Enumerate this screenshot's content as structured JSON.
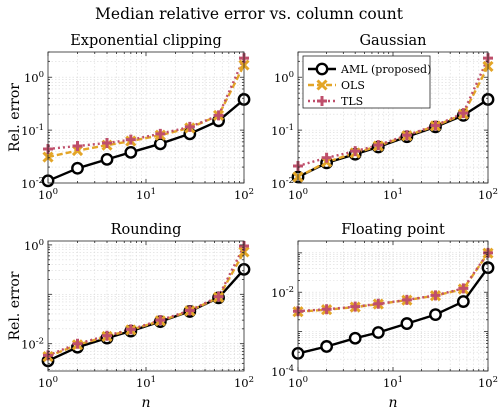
{
  "figure_title": "Median relative error vs. column count",
  "legend": {
    "location": "top-left of Gaussian panel",
    "entries": [
      "AML (proposed)",
      "OLS",
      "TLS"
    ]
  },
  "styles": {
    "AML (proposed)": {
      "color": "#000000",
      "linestyle": "solid",
      "marker": "circle"
    },
    "OLS": {
      "color": "#e3a527",
      "linestyle": "dashed",
      "marker": "x"
    },
    "TLS": {
      "color": "#bf4f6b",
      "linestyle": "dotted",
      "marker": "plus"
    }
  },
  "chart_data": [
    {
      "type": "line",
      "title": "Exponential clipping",
      "xlabel": "",
      "ylabel": "Rel. error",
      "xscale": "log",
      "yscale": "log",
      "xlim": [
        1,
        100
      ],
      "ylim": [
        0.01,
        3
      ],
      "grid": true,
      "xticks": [
        {
          "base": "10",
          "exp": "0"
        },
        {
          "base": "10",
          "exp": "1"
        },
        {
          "base": "10",
          "exp": "2"
        }
      ],
      "yticks": [
        {
          "value": 0.01,
          "base": "10",
          "exp": "-2"
        },
        {
          "value": 0.1,
          "base": "10",
          "exp": "-1"
        },
        {
          "value": 1,
          "base": "10",
          "exp": "0"
        }
      ],
      "x": [
        1,
        2,
        4,
        7,
        14,
        28,
        55,
        100
      ],
      "series": [
        {
          "name": "AML (proposed)",
          "values": [
            0.011,
            0.019,
            0.028,
            0.038,
            0.055,
            0.085,
            0.15,
            0.38
          ]
        },
        {
          "name": "OLS",
          "values": [
            0.031,
            0.041,
            0.052,
            0.062,
            0.08,
            0.11,
            0.19,
            1.7
          ]
        },
        {
          "name": "TLS",
          "values": [
            0.044,
            0.05,
            0.057,
            0.066,
            0.085,
            0.115,
            0.19,
            2.3
          ]
        }
      ]
    },
    {
      "type": "line",
      "title": "Gaussian",
      "xlabel": "",
      "ylabel": "",
      "xscale": "log",
      "yscale": "log",
      "xlim": [
        1,
        100
      ],
      "ylim": [
        0.01,
        3
      ],
      "grid": true,
      "xticks": [
        {
          "base": "10",
          "exp": "0"
        },
        {
          "base": "10",
          "exp": "1"
        },
        {
          "base": "10",
          "exp": "2"
        }
      ],
      "yticks": [
        {
          "value": 0.01,
          "base": "10",
          "exp": "-2"
        },
        {
          "value": 0.1,
          "base": "10",
          "exp": "-1"
        },
        {
          "value": 1,
          "base": "10",
          "exp": "0"
        }
      ],
      "x": [
        1,
        2,
        4,
        7,
        14,
        28,
        55,
        100
      ],
      "series": [
        {
          "name": "AML (proposed)",
          "values": [
            0.013,
            0.024,
            0.035,
            0.048,
            0.075,
            0.115,
            0.19,
            0.38
          ]
        },
        {
          "name": "OLS",
          "values": [
            0.013,
            0.025,
            0.037,
            0.05,
            0.078,
            0.12,
            0.2,
            1.6
          ]
        },
        {
          "name": "TLS",
          "values": [
            0.021,
            0.03,
            0.04,
            0.052,
            0.08,
            0.122,
            0.21,
            2.3
          ]
        }
      ]
    },
    {
      "type": "line",
      "title": "Rounding",
      "xlabel": "n",
      "ylabel": "Rel. error",
      "xscale": "log",
      "yscale": "log",
      "xlim": [
        1,
        100
      ],
      "ylim": [
        0.0028,
        1.2
      ],
      "grid": true,
      "xticks": [
        {
          "base": "10",
          "exp": "0"
        },
        {
          "base": "10",
          "exp": "1"
        },
        {
          "base": "10",
          "exp": "2"
        }
      ],
      "yticks": [
        {
          "value": 0.01,
          "base": "10",
          "exp": "-2"
        },
        {
          "value": 1,
          "base": "10",
          "exp": "0"
        }
      ],
      "x": [
        1,
        2,
        4,
        7,
        14,
        28,
        55,
        100
      ],
      "series": [
        {
          "name": "AML (proposed)",
          "values": [
            0.0045,
            0.0085,
            0.013,
            0.018,
            0.028,
            0.045,
            0.085,
            0.32
          ]
        },
        {
          "name": "OLS",
          "values": [
            0.0055,
            0.0095,
            0.014,
            0.019,
            0.029,
            0.046,
            0.087,
            0.72
          ]
        },
        {
          "name": "TLS",
          "values": [
            0.0058,
            0.01,
            0.0145,
            0.0195,
            0.03,
            0.047,
            0.09,
            0.95
          ]
        }
      ]
    },
    {
      "type": "line",
      "title": "Floating point",
      "xlabel": "n",
      "ylabel": "",
      "xscale": "log",
      "yscale": "log",
      "xlim": [
        1,
        100
      ],
      "ylim": [
        0.0001,
        0.2
      ],
      "grid": true,
      "xticks": [
        {
          "base": "10",
          "exp": "0"
        },
        {
          "base": "10",
          "exp": "1"
        },
        {
          "base": "10",
          "exp": "2"
        }
      ],
      "yticks": [
        {
          "value": 0.0001,
          "base": "10",
          "exp": "-4"
        },
        {
          "value": 0.01,
          "base": "10",
          "exp": "-2"
        }
      ],
      "x": [
        1,
        2,
        4,
        7,
        14,
        28,
        55,
        100
      ],
      "series": [
        {
          "name": "AML (proposed)",
          "values": [
            0.00028,
            0.00042,
            0.00068,
            0.00095,
            0.0016,
            0.0027,
            0.0058,
            0.042
          ]
        },
        {
          "name": "OLS",
          "values": [
            0.0032,
            0.0036,
            0.0042,
            0.005,
            0.0063,
            0.0082,
            0.012,
            0.098
          ]
        },
        {
          "name": "TLS",
          "values": [
            0.0033,
            0.0037,
            0.0043,
            0.0051,
            0.0064,
            0.0083,
            0.0125,
            0.1
          ]
        }
      ]
    }
  ]
}
